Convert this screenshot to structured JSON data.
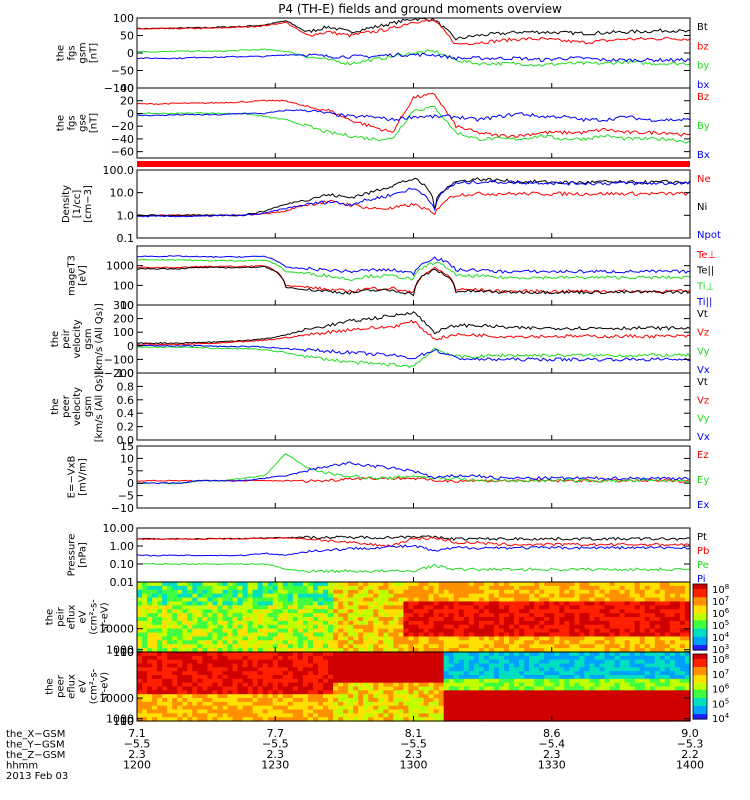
{
  "title": "P4 (TH-E) fields and ground moments overview",
  "colors": {
    "black": "#000000",
    "red": "#ff0000",
    "green": "#22dd22",
    "blue": "#0000ff"
  },
  "chart_data": [
    {
      "type": "line",
      "ylabel_lines": [
        "the",
        "fgs",
        "gsm",
        "[nT]"
      ],
      "yticks": [
        "100",
        "50",
        "0",
        "−50",
        "−100"
      ],
      "ytick_values": [
        100,
        50,
        0,
        -50,
        -100
      ],
      "ylim": [
        -100,
        100
      ],
      "series": [
        {
          "name": "Bt",
          "color": "black",
          "values": [
            70,
            70,
            71,
            72,
            74,
            76,
            80,
            92,
            60,
            75,
            60,
            72,
            85,
            98,
            95,
            40,
            50,
            55,
            60,
            60,
            58,
            56,
            58,
            60,
            62,
            65,
            60
          ]
        },
        {
          "name": "bz",
          "color": "red",
          "values": [
            69,
            69,
            70,
            70,
            72,
            74,
            78,
            88,
            50,
            60,
            50,
            60,
            70,
            90,
            92,
            25,
            30,
            35,
            40,
            40,
            35,
            30,
            35,
            40,
            40,
            42,
            40
          ]
        },
        {
          "name": "by",
          "color": "green",
          "values": [
            5,
            3,
            5,
            5,
            5,
            8,
            10,
            5,
            -10,
            -20,
            -30,
            -20,
            -10,
            0,
            5,
            -20,
            -30,
            -30,
            -30,
            -35,
            -30,
            -30,
            -30,
            -25,
            -30,
            -30,
            -30
          ]
        },
        {
          "name": "bx",
          "color": "blue",
          "values": [
            -15,
            -15,
            -15,
            -12,
            -12,
            -10,
            -10,
            -5,
            -5,
            -10,
            -10,
            -10,
            -5,
            -5,
            -5,
            -15,
            -15,
            -15,
            -15,
            -20,
            -15,
            -15,
            -20,
            -20,
            -20,
            -20,
            -20
          ]
        }
      ]
    },
    {
      "type": "line",
      "ylabel_lines": [
        "the",
        "fgs",
        "gse",
        "[nT]"
      ],
      "yticks": [
        "40",
        "20",
        "0",
        "−20",
        "−40",
        "−60"
      ],
      "ytick_values": [
        40,
        20,
        0,
        -20,
        -40,
        -60
      ],
      "ylim": [
        -70,
        40
      ],
      "series": [
        {
          "name": "Bz",
          "color": "red",
          "values": [
            15,
            15,
            16,
            16,
            17,
            18,
            20,
            20,
            10,
            5,
            -10,
            -20,
            -30,
            25,
            30,
            -20,
            -30,
            -35,
            -35,
            -30,
            -30,
            -30,
            -25,
            -30,
            -30,
            -30,
            -35
          ]
        },
        {
          "name": "By",
          "color": "green",
          "values": [
            0,
            0,
            0,
            1,
            0,
            0,
            -5,
            -10,
            -20,
            -30,
            -35,
            -40,
            -40,
            5,
            10,
            -30,
            -40,
            -40,
            -40,
            -35,
            -40,
            -40,
            -35,
            -40,
            -40,
            -40,
            -45
          ]
        },
        {
          "name": "Bx",
          "color": "blue",
          "values": [
            -3,
            -3,
            -2,
            -2,
            -2,
            0,
            0,
            5,
            5,
            0,
            -5,
            -5,
            -10,
            -5,
            -5,
            -5,
            -10,
            -5,
            0,
            -5,
            -5,
            -10,
            -10,
            -5,
            -10,
            -10,
            -10
          ]
        }
      ]
    },
    {
      "type": "line",
      "scale": "log",
      "ylabel_lines": [
        "Density",
        "[1/cc]",
        "[cm−3]"
      ],
      "yticks": [
        "100.0",
        "10.0",
        "1.0",
        "0.1"
      ],
      "ytick_values": [
        100,
        10,
        1,
        0.1
      ],
      "ylim": [
        0.1,
        100
      ],
      "series": [
        {
          "name": "Ne",
          "color": "red",
          "values": [
            1,
            1,
            1,
            1,
            1,
            1,
            1.2,
            1.5,
            3,
            4,
            3,
            2,
            2,
            3,
            1,
            8,
            9,
            9,
            9,
            9,
            9,
            9,
            9,
            9,
            9,
            9,
            9
          ]
        },
        {
          "name": "Ni",
          "color": "black",
          "values": [
            1,
            1,
            1,
            1,
            1,
            1,
            1.5,
            3,
            5,
            8,
            6,
            10,
            20,
            40,
            2,
            30,
            40,
            35,
            30,
            30,
            28,
            28,
            30,
            28,
            28,
            30,
            28
          ]
        },
        {
          "name": "Npot",
          "color": "blue",
          "values": [
            0.9,
            0.9,
            0.9,
            0.9,
            1,
            1,
            1.2,
            2,
            3,
            4,
            3,
            5,
            8,
            15,
            1.5,
            25,
            30,
            30,
            28,
            28,
            26,
            26,
            26,
            26,
            26,
            26,
            26
          ]
        }
      ]
    },
    {
      "type": "line",
      "scale": "log",
      "ylabel_lines": [
        "mageT3",
        "[eV]"
      ],
      "yticks": [
        "1000",
        "100",
        "10"
      ],
      "ytick_values": [
        1000,
        100,
        10
      ],
      "ylim": [
        10,
        10000
      ],
      "series": [
        {
          "name": "Te⊥",
          "color": "red",
          "values": [
            800,
            800,
            800,
            900,
            900,
            900,
            1000,
            100,
            80,
            60,
            50,
            70,
            70,
            40,
            700,
            60,
            60,
            50,
            50,
            50,
            50,
            50,
            50,
            50,
            50,
            50,
            50
          ]
        },
        {
          "name": "Te||",
          "color": "black",
          "values": [
            700,
            700,
            700,
            800,
            800,
            800,
            900,
            80,
            60,
            50,
            40,
            55,
            55,
            35,
            600,
            50,
            50,
            45,
            45,
            45,
            45,
            45,
            45,
            45,
            45,
            45,
            45
          ]
        },
        {
          "name": "Ti⊥",
          "color": "green",
          "values": [
            2000,
            2000,
            2000,
            1800,
            1800,
            1800,
            1900,
            500,
            400,
            300,
            200,
            300,
            300,
            200,
            1500,
            300,
            300,
            250,
            250,
            250,
            250,
            250,
            250,
            250,
            250,
            250,
            250
          ]
        },
        {
          "name": "Ti||",
          "color": "blue",
          "values": [
            3000,
            3000,
            3000,
            2800,
            2800,
            2800,
            3000,
            800,
            700,
            600,
            500,
            600,
            600,
            400,
            2500,
            600,
            600,
            500,
            500,
            500,
            500,
            500,
            500,
            500,
            500,
            500,
            500
          ]
        }
      ]
    },
    {
      "type": "line",
      "ylabel_lines": [
        "the",
        "peir",
        "velocity",
        "gsm",
        "[km/s (All Qs)]"
      ],
      "yticks": [
        "300",
        "200",
        "100",
        "0",
        "−100",
        "−200"
      ],
      "ytick_values": [
        300,
        200,
        100,
        0,
        -100,
        -200
      ],
      "ylim": [
        -200,
        300
      ],
      "series": [
        {
          "name": "Vt",
          "color": "black",
          "values": [
            20,
            20,
            20,
            25,
            30,
            40,
            50,
            80,
            120,
            150,
            180,
            200,
            220,
            250,
            100,
            150,
            150,
            140,
            130,
            130,
            130,
            130,
            130,
            130,
            130,
            130,
            130
          ]
        },
        {
          "name": "Vz",
          "color": "red",
          "values": [
            10,
            10,
            10,
            15,
            20,
            30,
            40,
            60,
            80,
            100,
            120,
            130,
            140,
            180,
            50,
            80,
            80,
            70,
            70,
            70,
            70,
            70,
            70,
            70,
            70,
            70,
            70
          ]
        },
        {
          "name": "Vy",
          "color": "green",
          "values": [
            -10,
            -10,
            -10,
            -15,
            -20,
            -20,
            -30,
            -50,
            -80,
            -100,
            -120,
            -130,
            -140,
            -150,
            -20,
            -80,
            -80,
            -70,
            -70,
            -70,
            -70,
            -70,
            -70,
            -70,
            -70,
            -70,
            -70
          ]
        },
        {
          "name": "Vx",
          "color": "blue",
          "values": [
            0,
            0,
            0,
            0,
            -5,
            -5,
            -10,
            -20,
            -30,
            -40,
            -50,
            -60,
            -70,
            -90,
            -30,
            -90,
            -100,
            -100,
            -100,
            -100,
            -100,
            -100,
            -100,
            -100,
            -100,
            -100,
            -100
          ]
        }
      ]
    },
    {
      "type": "line",
      "ylabel_lines": [
        "the",
        "peer",
        "velocity",
        "gsm",
        "[km/s (All Qs)]"
      ],
      "yticks": [
        "1.0",
        "0.8",
        "0.6",
        "0.4",
        "0.2",
        "0.0"
      ],
      "ytick_values": [
        1,
        0.8,
        0.6,
        0.4,
        0.2,
        0
      ],
      "ylim": [
        0,
        1
      ],
      "series": [
        {
          "name": "Vt",
          "color": "black",
          "values": []
        },
        {
          "name": "Vz",
          "color": "red",
          "values": []
        },
        {
          "name": "Vy",
          "color": "green",
          "values": []
        },
        {
          "name": "Vx",
          "color": "blue",
          "values": []
        }
      ]
    },
    {
      "type": "line",
      "ylabel_lines": [
        "E=−VxB",
        "[mV/m]"
      ],
      "yticks": [
        "15",
        "10",
        "5",
        "0",
        "−5",
        "−10"
      ],
      "ytick_values": [
        15,
        10,
        5,
        0,
        -5,
        -10
      ],
      "ylim": [
        -10,
        15
      ],
      "series": [
        {
          "name": "Ez",
          "color": "red",
          "values": [
            1,
            1,
            1,
            1,
            1,
            1,
            1,
            1,
            1,
            1,
            2,
            2,
            2,
            2,
            1,
            1,
            1,
            1,
            1,
            1,
            1,
            1,
            1,
            1,
            1,
            1,
            1
          ]
        },
        {
          "name": "Ey",
          "color": "green",
          "values": [
            0,
            0,
            0,
            1,
            1,
            2,
            3,
            12,
            6,
            4,
            3,
            2,
            2,
            3,
            2,
            2,
            1,
            1,
            1,
            1,
            1,
            1,
            1,
            1,
            1,
            1,
            1
          ]
        },
        {
          "name": "Ex",
          "color": "blue",
          "values": [
            0,
            0,
            0,
            1,
            1,
            1,
            2,
            3,
            5,
            7,
            8,
            7,
            6,
            5,
            2,
            3,
            3,
            2,
            2,
            2,
            2,
            2,
            2,
            2,
            2,
            2,
            2
          ]
        }
      ]
    },
    {
      "type": "line",
      "scale": "log",
      "ylabel_lines": [
        "Pressure",
        "[nPa]"
      ],
      "yticks": [
        "10.00",
        "1.00",
        "0.10",
        "0.01"
      ],
      "ytick_values": [
        10,
        1,
        0.1,
        0.01
      ],
      "ylim": [
        0.01,
        10
      ],
      "series": [
        {
          "name": "Pt",
          "color": "black",
          "values": [
            2.5,
            2.5,
            2.5,
            2.5,
            2.6,
            2.6,
            2.8,
            3,
            3,
            3,
            3,
            3,
            3,
            3.5,
            3,
            2.5,
            2.5,
            2.5,
            2.5,
            2.5,
            2.5,
            2.5,
            2.5,
            2.5,
            2.5,
            2.5,
            2.5
          ]
        },
        {
          "name": "Pb",
          "color": "red",
          "values": [
            2.4,
            2.4,
            2.4,
            2.4,
            2.5,
            2.5,
            2.7,
            2.8,
            2.5,
            2,
            1.5,
            1.2,
            1,
            2.5,
            2.8,
            1.5,
            1.5,
            1.2,
            1.2,
            1.2,
            1.2,
            1.2,
            1.2,
            1.2,
            1.2,
            1.2,
            1.2
          ]
        },
        {
          "name": "Pe",
          "color": "green",
          "values": [
            0.1,
            0.1,
            0.1,
            0.1,
            0.1,
            0.1,
            0.1,
            0.05,
            0.04,
            0.04,
            0.04,
            0.04,
            0.04,
            0.04,
            0.08,
            0.05,
            0.05,
            0.05,
            0.05,
            0.05,
            0.05,
            0.05,
            0.05,
            0.05,
            0.05,
            0.05,
            0.05
          ]
        },
        {
          "name": "Pi",
          "color": "blue",
          "values": [
            0.3,
            0.3,
            0.3,
            0.3,
            0.3,
            0.3,
            0.4,
            0.3,
            0.5,
            0.6,
            0.7,
            0.8,
            0.9,
            1,
            0.5,
            0.8,
            0.8,
            0.8,
            0.8,
            0.8,
            0.8,
            0.8,
            0.8,
            0.8,
            0.8,
            0.8,
            0.8
          ]
        }
      ]
    },
    {
      "type": "heatmap",
      "ylabel_lines": [
        "the",
        "peir",
        "eflux",
        "eV",
        "(cm²-s-",
        "sr-eV)"
      ],
      "yticks": [
        "10000",
        "1000",
        "100",
        "10"
      ],
      "ytick_values": [
        10000,
        1000,
        100,
        10
      ],
      "ylim": [
        10,
        30000
      ],
      "colorbar_ticks": [
        {
          "b": "10",
          "e": "8"
        },
        {
          "b": "10",
          "e": "7"
        },
        {
          "b": "10",
          "e": "6"
        },
        {
          "b": "10",
          "e": "5"
        },
        {
          "b": "10",
          "e": "4"
        },
        {
          "b": "10",
          "e": "3"
        }
      ]
    },
    {
      "type": "heatmap",
      "ylabel_lines": [
        "the",
        "peer",
        "eflux",
        "eV",
        "(cm²-s-",
        "sr-eV)"
      ],
      "yticks": [
        "10000",
        "1000",
        "100",
        "10"
      ],
      "ytick_values": [
        10000,
        1000,
        100,
        10
      ],
      "ylim": [
        10,
        30000
      ],
      "colorbar_ticks": [
        {
          "b": "10",
          "e": "8"
        },
        {
          "b": "10",
          "e": "7"
        },
        {
          "b": "10",
          "e": "6"
        },
        {
          "b": "10",
          "e": "5"
        },
        {
          "b": "10",
          "e": "4"
        }
      ]
    }
  ],
  "ephemeris": {
    "labels": [
      "the_X−GSM",
      "the_Y−GSM",
      "the_Z−GSM",
      "hhmm",
      "2013 Feb 03"
    ],
    "columns": [
      {
        "x": "7.1",
        "y": "−5.5",
        "z": "2.3",
        "t": "1200"
      },
      {
        "x": "7.7",
        "y": "−5.5",
        "z": "2.3",
        "t": "1230"
      },
      {
        "x": "8.1",
        "y": "−5.5",
        "z": "2.3",
        "t": "1300"
      },
      {
        "x": "8.6",
        "y": "−5.4",
        "z": "2.3",
        "t": "1330"
      },
      {
        "x": "9.0",
        "y": "−5.3",
        "z": "2.2",
        "t": "1400"
      }
    ]
  }
}
